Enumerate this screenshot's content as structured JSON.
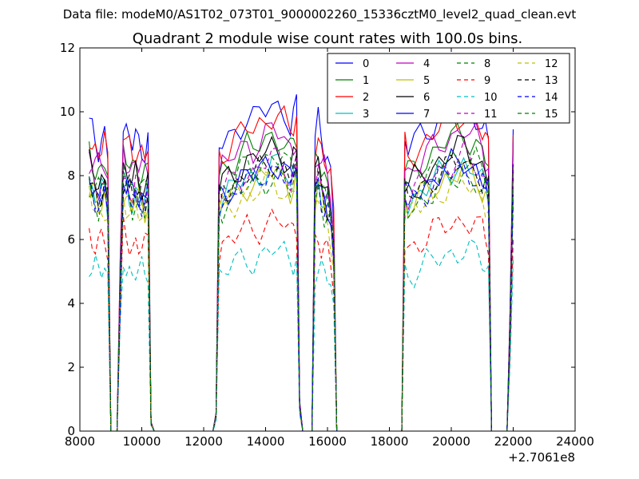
{
  "chart_data": {
    "type": "line",
    "suptitle": "Data file: modeM0/AS1T02_073T01_9000002260_15336cztM0_level2_quad_clean.evt",
    "title": "Quadrant 2 module wise count rates with 100.0s bins.",
    "xlabel": "",
    "ylabel": "",
    "x_offset_label": "+2.7061e8",
    "xlim": [
      8000,
      24000
    ],
    "ylim": [
      0,
      12
    ],
    "xticks": [
      8000,
      10000,
      12000,
      14000,
      16000,
      18000,
      20000,
      22000,
      24000
    ],
    "yticks": [
      0,
      2,
      4,
      6,
      8,
      10,
      12
    ],
    "xtick_labels": [
      "8000",
      "10000",
      "12000",
      "14000",
      "16000",
      "18000",
      "20000",
      "22000",
      "24000"
    ],
    "ytick_labels": [
      "0",
      "2",
      "4",
      "6",
      "8",
      "10",
      "12"
    ],
    "grid": false,
    "legend_position": "top-right",
    "colors": {
      "blue": "#0000ff",
      "green": "#008000",
      "red": "#ff0000",
      "cyan": "#00bfbf",
      "magenta": "#bf00bf",
      "olive": "#bfbf00",
      "black": "#000000"
    },
    "series": [
      {
        "name": "0",
        "color": "#0000ff",
        "style": "solid",
        "level": 9.6
      },
      {
        "name": "1",
        "color": "#008000",
        "style": "solid",
        "level": 8.7
      },
      {
        "name": "2",
        "color": "#ff0000",
        "style": "solid",
        "level": 9.3
      },
      {
        "name": "3",
        "color": "#00bfbf",
        "style": "solid",
        "level": 7.8
      },
      {
        "name": "4",
        "color": "#bf00bf",
        "style": "solid",
        "level": 8.8
      },
      {
        "name": "5",
        "color": "#bfbf00",
        "style": "solid",
        "level": 7.6
      },
      {
        "name": "6",
        "color": "#000000",
        "style": "solid",
        "level": 8.3
      },
      {
        "name": "7",
        "color": "#0000ff",
        "style": "solid",
        "level": 7.9
      },
      {
        "name": "8",
        "color": "#008000",
        "style": "dashed",
        "level": 7.5
      },
      {
        "name": "9",
        "color": "#ff0000",
        "style": "dashed",
        "level": 6.2
      },
      {
        "name": "10",
        "color": "#00bfbf",
        "style": "dashed",
        "level": 5.3
      },
      {
        "name": "11",
        "color": "#bf00bf",
        "style": "dashed",
        "level": 8.0
      },
      {
        "name": "12",
        "color": "#bfbf00",
        "style": "dashed",
        "level": 7.3
      },
      {
        "name": "13",
        "color": "#000000",
        "style": "dashed",
        "level": 7.9
      },
      {
        "name": "14",
        "color": "#0000ff",
        "style": "dashed",
        "level": 7.7
      },
      {
        "name": "15",
        "color": "#008000",
        "style": "dashed",
        "level": 8.1
      }
    ],
    "profile": {
      "x": [
        8300,
        8400,
        8500,
        8600,
        8700,
        8800,
        8900,
        9000,
        9100,
        9200,
        9300,
        9400,
        9500,
        9600,
        9700,
        9800,
        9900,
        10000,
        10100,
        10200,
        10300,
        10400,
        10500,
        10600,
        11000,
        12000,
        12300,
        12400,
        12500,
        12600,
        12800,
        13000,
        13200,
        13400,
        13600,
        13800,
        14000,
        14200,
        14400,
        14600,
        14800,
        14900,
        15000,
        15100,
        15200,
        15300,
        15400,
        15500,
        15600,
        15700,
        15800,
        15900,
        16000,
        16100,
        16200,
        16300,
        16400,
        17000,
        18000,
        18300,
        18400,
        18500,
        18600,
        18800,
        19000,
        19200,
        19400,
        19600,
        19800,
        20000,
        20200,
        20400,
        20600,
        20800,
        21000,
        21100,
        21200,
        21300,
        21400,
        21500,
        21600,
        21700,
        21800,
        21900,
        22000
      ],
      "factor": [
        1.0,
        0.97,
        0.95,
        0.93,
        0.95,
        0.97,
        0.9,
        0.0,
        0.0,
        0.0,
        0.55,
        1.0,
        0.97,
        0.95,
        0.93,
        0.96,
        0.94,
        0.93,
        0.92,
        0.95,
        0.03,
        0.0,
        0.0,
        0.0,
        0.0,
        0.0,
        0.0,
        0.06,
        0.92,
        0.94,
        0.96,
        0.98,
        1.0,
        1.02,
        1.01,
        1.03,
        1.05,
        1.07,
        1.06,
        1.04,
        1.0,
        1.02,
        1.05,
        0.1,
        0.0,
        0.0,
        0.0,
        0.0,
        0.95,
        1.0,
        0.95,
        0.92,
        0.9,
        0.85,
        0.7,
        0.0,
        0.0,
        0.0,
        0.0,
        0.0,
        0.0,
        0.95,
        0.92,
        0.94,
        0.96,
        0.98,
        1.0,
        1.02,
        1.04,
        1.05,
        1.06,
        1.07,
        1.05,
        1.04,
        1.0,
        0.98,
        0.95,
        0.0,
        0.0,
        0.0,
        0.0,
        0.0,
        0.0,
        0.4,
        1.0
      ]
    }
  }
}
